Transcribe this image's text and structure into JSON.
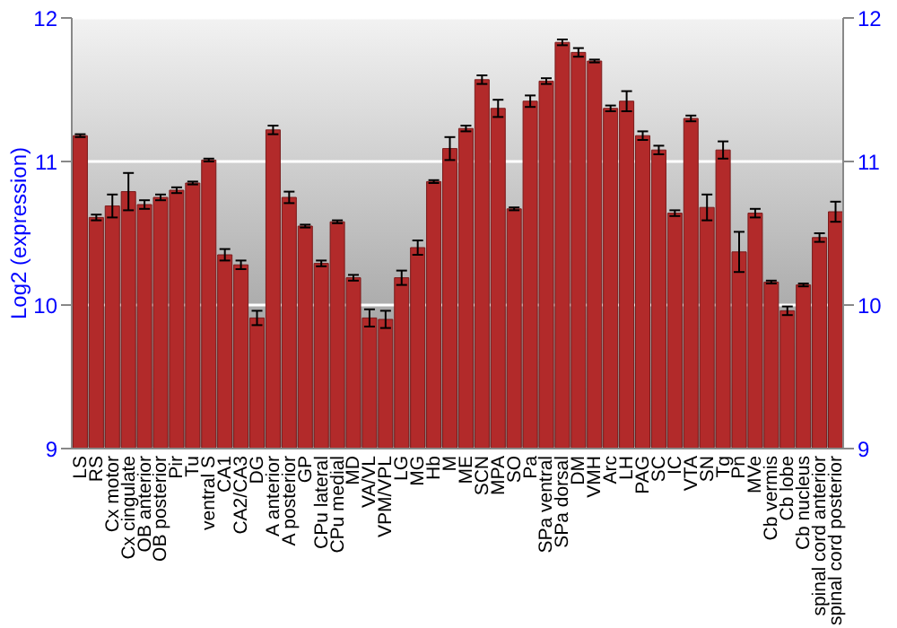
{
  "chart_data": {
    "type": "bar",
    "ylabel": "Log2 (expression)",
    "categories": [
      "LS",
      "RS",
      "Cx motor",
      "Cx cingulate",
      "OB anterior",
      "OB posterior",
      "Pir",
      "Tu",
      "ventral S",
      "CA1",
      "CA2/CA3",
      "DG",
      "A anterior",
      "A posterior",
      "GP",
      "CPu lateral",
      "CPu medial",
      "MD",
      "VA/VL",
      "VPM/VPL",
      "LG",
      "MG",
      "Hb",
      "M",
      "ME",
      "SCN",
      "MPA",
      "SO",
      "Pa",
      "SPa ventral",
      "SPa dorsal",
      "DM",
      "VMH",
      "Arc",
      "LH",
      "PAG",
      "SC",
      "IC",
      "VTA",
      "SN",
      "Tg",
      "Pn",
      "MVe",
      "Cb vermis",
      "Cb lobe",
      "Cb nucleus",
      "spinal cord anterior",
      "spinal cord posterior"
    ],
    "values": [
      11.18,
      10.61,
      10.69,
      10.79,
      10.7,
      10.75,
      10.8,
      10.85,
      11.01,
      10.35,
      10.28,
      9.91,
      11.22,
      10.75,
      10.55,
      10.29,
      10.58,
      10.19,
      9.91,
      9.9,
      10.19,
      10.4,
      10.86,
      11.09,
      11.23,
      11.57,
      11.37,
      10.67,
      11.42,
      11.56,
      11.83,
      11.76,
      11.7,
      11.37,
      11.42,
      11.18,
      11.08,
      10.64,
      11.3,
      10.68,
      11.08,
      10.37,
      10.64,
      10.16,
      9.96,
      10.14,
      10.47,
      10.65
    ],
    "errors": [
      0.01,
      0.02,
      0.08,
      0.13,
      0.03,
      0.02,
      0.02,
      0.01,
      0.01,
      0.04,
      0.03,
      0.05,
      0.03,
      0.04,
      0.01,
      0.02,
      0.01,
      0.02,
      0.06,
      0.06,
      0.05,
      0.05,
      0.01,
      0.08,
      0.02,
      0.03,
      0.06,
      0.01,
      0.04,
      0.02,
      0.02,
      0.03,
      0.01,
      0.02,
      0.07,
      0.03,
      0.03,
      0.02,
      0.02,
      0.09,
      0.06,
      0.14,
      0.03,
      0.01,
      0.03,
      0.01,
      0.03,
      0.07
    ],
    "color": "#b22a2a",
    "ylim": [
      9,
      12
    ],
    "yticks": [
      9,
      10,
      11,
      12
    ],
    "y2lim": [
      9,
      12
    ],
    "y2ticks": [
      9,
      10,
      11,
      12
    ],
    "grid": "y"
  }
}
